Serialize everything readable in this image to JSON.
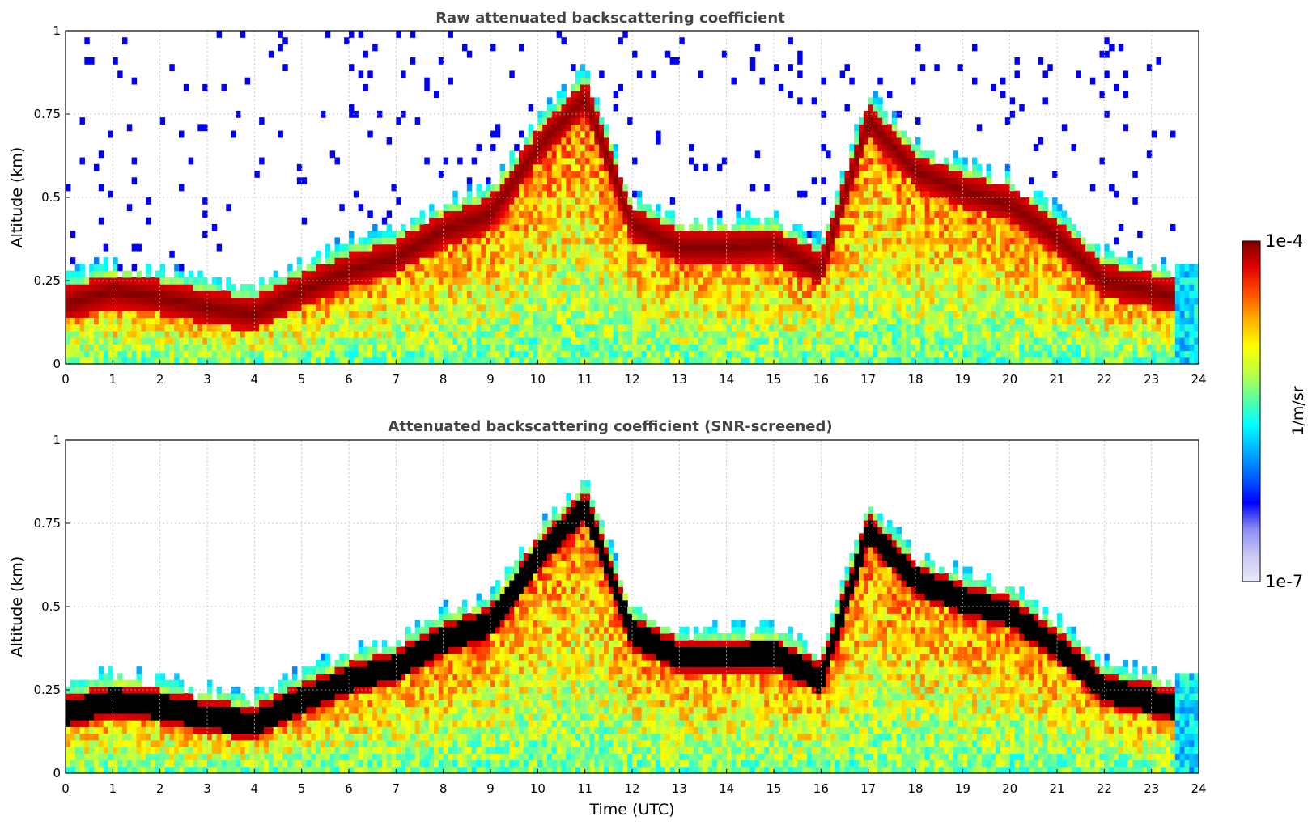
{
  "chart_data": [
    {
      "type": "heatmap",
      "title": "Raw attenuated backscattering coefficient",
      "xlabel": "",
      "ylabel": "Altitude (km)",
      "xlim": [
        0,
        24
      ],
      "ylim": [
        0,
        1
      ],
      "x_ticks": [
        "0",
        "1",
        "2",
        "3",
        "4",
        "5",
        "6",
        "7",
        "8",
        "9",
        "10",
        "11",
        "12",
        "13",
        "14",
        "15",
        "16",
        "17",
        "18",
        "19",
        "20",
        "21",
        "22",
        "23",
        "24"
      ],
      "y_ticks": [
        "0",
        "0.25",
        "0.5",
        "0.75",
        "1"
      ],
      "grid": true,
      "colormap": "jet",
      "screened_black": false,
      "cloud_layer_altitude_km": [
        [
          0,
          0.18
        ],
        [
          1,
          0.22
        ],
        [
          2,
          0.2
        ],
        [
          3,
          0.17
        ],
        [
          4,
          0.15
        ],
        [
          5,
          0.22
        ],
        [
          6,
          0.28
        ],
        [
          7,
          0.32
        ],
        [
          8,
          0.4
        ],
        [
          9,
          0.45
        ],
        [
          10,
          0.65
        ],
        [
          11,
          0.8
        ],
        [
          12,
          0.42
        ],
        [
          13,
          0.35
        ],
        [
          14,
          0.35
        ],
        [
          15,
          0.36
        ],
        [
          16,
          0.28
        ],
        [
          17,
          0.73
        ],
        [
          18,
          0.58
        ],
        [
          19,
          0.52
        ],
        [
          20,
          0.48
        ],
        [
          21,
          0.38
        ],
        [
          22,
          0.25
        ],
        [
          23,
          0.22
        ],
        [
          23.5,
          0.2
        ]
      ]
    },
    {
      "type": "heatmap",
      "title": "Attenuated backscattering coefficient (SNR-screened)",
      "xlabel": "Time (UTC)",
      "ylabel": "Altitude (km)",
      "xlim": [
        0,
        24
      ],
      "ylim": [
        0,
        1
      ],
      "x_ticks": [
        "0",
        "1",
        "2",
        "3",
        "4",
        "5",
        "6",
        "7",
        "8",
        "9",
        "10",
        "11",
        "12",
        "13",
        "14",
        "15",
        "16",
        "17",
        "18",
        "19",
        "20",
        "21",
        "22",
        "23",
        "24"
      ],
      "y_ticks": [
        "0",
        "0.25",
        "0.5",
        "0.75",
        "1"
      ],
      "grid": true,
      "colormap": "jet",
      "screened_black": true,
      "cloud_layer_altitude_km": [
        [
          0,
          0.18
        ],
        [
          1,
          0.22
        ],
        [
          2,
          0.2
        ],
        [
          3,
          0.17
        ],
        [
          4,
          0.15
        ],
        [
          5,
          0.22
        ],
        [
          6,
          0.28
        ],
        [
          7,
          0.32
        ],
        [
          8,
          0.4
        ],
        [
          9,
          0.45
        ],
        [
          10,
          0.65
        ],
        [
          11,
          0.8
        ],
        [
          12,
          0.42
        ],
        [
          13,
          0.35
        ],
        [
          14,
          0.35
        ],
        [
          15,
          0.36
        ],
        [
          16,
          0.28
        ],
        [
          17,
          0.73
        ],
        [
          18,
          0.58
        ],
        [
          19,
          0.52
        ],
        [
          20,
          0.48
        ],
        [
          21,
          0.38
        ],
        [
          22,
          0.25
        ],
        [
          23,
          0.22
        ],
        [
          23.5,
          0.2
        ]
      ]
    }
  ],
  "colorbar": {
    "label": "1/m/sr",
    "max_label": "1e-4",
    "min_label": "1e-7",
    "colors": [
      "#e8e8f8",
      "#c8c8f4",
      "#8c8cf0",
      "#0000ff",
      "#0060ff",
      "#00b0ff",
      "#00ffff",
      "#60ff9f",
      "#c0ff40",
      "#ffff00",
      "#ffb000",
      "#ff5000",
      "#e00000",
      "#800000"
    ]
  }
}
